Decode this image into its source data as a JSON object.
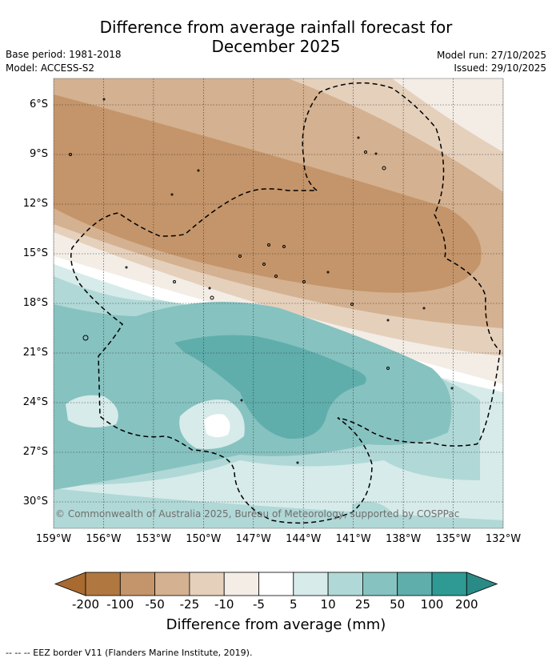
{
  "title": {
    "line1": "Difference from average rainfall forecast for",
    "line2": "December 2025"
  },
  "meta": {
    "base_period": "Base period: 1981-2018",
    "model": "Model: ACCESS-S2",
    "model_run": "Model run: 27/10/2025",
    "issued": "Issued: 29/10/2025"
  },
  "map": {
    "lat_labels": [
      "6°S",
      "9°S",
      "12°S",
      "15°S",
      "18°S",
      "21°S",
      "24°S",
      "27°S",
      "30°S"
    ],
    "lon_labels": [
      "159°W",
      "156°W",
      "153°W",
      "150°W",
      "147°W",
      "144°W",
      "141°W",
      "138°W",
      "135°W",
      "132°W"
    ],
    "copyright": "© Commonwealth of Australia 2025, Bureau of Meteorology, supported by COSPPac"
  },
  "colorbar": {
    "labels": [
      "-200",
      "-100",
      "-50",
      "-25",
      "-10",
      "-5",
      "5",
      "10",
      "25",
      "50",
      "100",
      "200"
    ],
    "colors": [
      "#a86a30",
      "#b07840",
      "#c4956a",
      "#d4b190",
      "#e5d0bc",
      "#f3ede6",
      "#ffffff",
      "#d6ebea",
      "#b0d8d6",
      "#86c2c0",
      "#5faeac",
      "#2f9a94",
      "#2a8a85"
    ],
    "title": "Difference from average (mm)"
  },
  "footnote": "--  --  -- EEZ border V11 (Flanders Marine Institute, 2019)."
}
